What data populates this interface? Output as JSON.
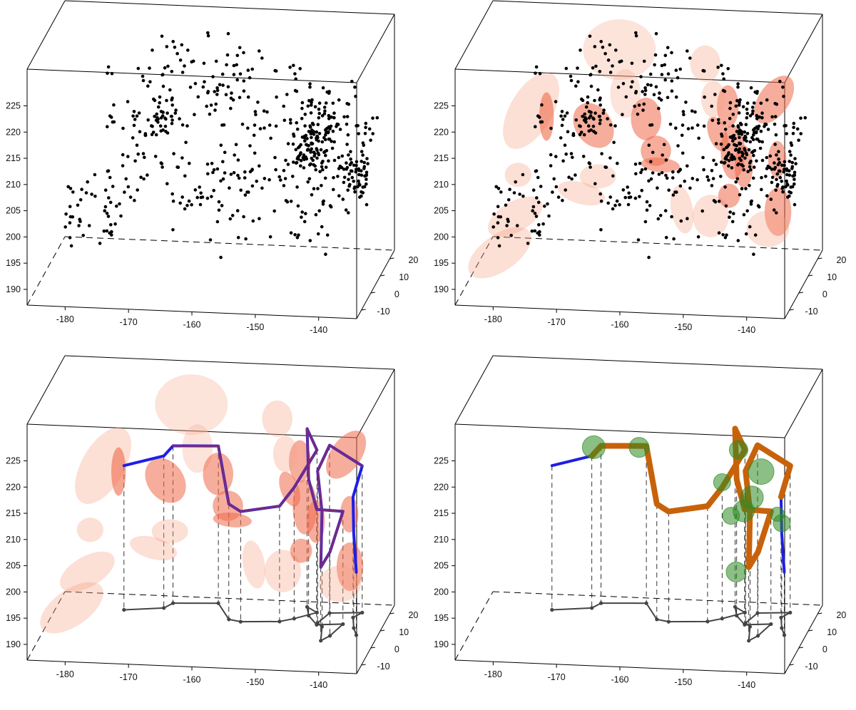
{
  "chart_data": [
    {
      "type": "scatter",
      "panel": "top-left",
      "title": "",
      "xlabel": "",
      "ylabel": "",
      "zlabel": "",
      "x_ticks": [
        "-180",
        "-170",
        "-160",
        "-150",
        "-140"
      ],
      "y_ticks": [
        "-10",
        "0",
        "10",
        "20"
      ],
      "z_ticks": [
        "190",
        "195",
        "200",
        "205",
        "210",
        "215",
        "220",
        "225"
      ],
      "xlim": [
        -186,
        -134
      ],
      "ylim": [
        -15,
        25
      ],
      "zlim": [
        187,
        232
      ],
      "clusters": [
        {
          "center": [
            -179,
            -5,
            203
          ],
          "spread": [
            1.6,
            3,
            4
          ],
          "count": 25,
          "seed": 11
        },
        {
          "center": [
            -175,
            3,
            200
          ],
          "spread": [
            1.2,
            3,
            4.5
          ],
          "count": 22,
          "seed": 12
        },
        {
          "center": [
            -172,
            8,
            213
          ],
          "spread": [
            3,
            4,
            6
          ],
          "count": 55,
          "seed": 13
        },
        {
          "center": [
            -167,
            6,
            218
          ],
          "spread": [
            1.5,
            3,
            2.5
          ],
          "count": 38,
          "seed": 14
        },
        {
          "center": [
            -160,
            -2,
            206
          ],
          "spread": [
            4,
            4,
            5
          ],
          "count": 40,
          "seed": 15
        },
        {
          "center": [
            -158,
            10,
            221
          ],
          "spread": [
            3,
            4,
            3
          ],
          "count": 45,
          "seed": 16
        },
        {
          "center": [
            -154,
            -4,
            209
          ],
          "spread": [
            2,
            3,
            5
          ],
          "count": 40,
          "seed": 17
        },
        {
          "center": [
            -147,
            12,
            217
          ],
          "spread": [
            3,
            4,
            5
          ],
          "count": 60,
          "seed": 18
        },
        {
          "center": [
            -144,
            5,
            213
          ],
          "spread": [
            1.6,
            2.5,
            2.5
          ],
          "count": 90,
          "seed": 19
        },
        {
          "center": [
            -140,
            12,
            215
          ],
          "spread": [
            2.5,
            3,
            4
          ],
          "count": 45,
          "seed": 20
        },
        {
          "center": [
            -143,
            -3,
            205
          ],
          "spread": [
            4,
            4,
            4
          ],
          "count": 55,
          "seed": 21
        },
        {
          "center": [
            -137,
            2,
            209
          ],
          "spread": [
            1.4,
            2,
            2
          ],
          "count": 60,
          "seed": 22
        },
        {
          "center": [
            -165,
            18,
            226
          ],
          "spread": [
            5,
            4,
            3
          ],
          "count": 30,
          "seed": 23
        }
      ]
    },
    {
      "type": "scatter",
      "panel": "top-right",
      "title": "",
      "x_ticks": [
        "-180",
        "-170",
        "-160",
        "-150",
        "-140"
      ],
      "y_ticks": [
        "-10",
        "0",
        "10",
        "20"
      ],
      "z_ticks": [
        "190",
        "195",
        "200",
        "205",
        "210",
        "215",
        "220",
        "225"
      ],
      "xlim": [
        -186,
        -134
      ],
      "ylim": [
        -15,
        25
      ],
      "zlim": [
        187,
        232
      ],
      "clusters_from": 0,
      "ellipses": [
        {
          "c": [
            -180,
            -8,
            195
          ],
          "r": [
            6,
            3
          ],
          "rot": -35,
          "op": 0.35,
          "col": "#f5a487"
        },
        {
          "c": [
            -178,
            -5,
            201
          ],
          "r": [
            5,
            2.5
          ],
          "rot": -30,
          "op": 0.35,
          "col": "#f5a487"
        },
        {
          "c": [
            -178,
            -2,
            208
          ],
          "r": [
            2.2,
            2
          ],
          "rot": 0,
          "op": 0.35,
          "col": "#f5a487"
        },
        {
          "c": [
            -177,
            5,
            218
          ],
          "r": [
            3.5,
            7
          ],
          "rot": 30,
          "op": 0.35,
          "col": "#f5a487"
        },
        {
          "c": [
            -175,
            8,
            216
          ],
          "r": [
            1.2,
            4
          ],
          "rot": 0,
          "op": 0.6,
          "col": "#ee6a4b"
        },
        {
          "c": [
            -167,
            4,
            216
          ],
          "r": [
            3,
            4
          ],
          "rot": -35,
          "op": 0.55,
          "col": "#ee6a4b"
        },
        {
          "c": [
            -168,
            -2,
            205
          ],
          "r": [
            4,
            1.8
          ],
          "rot": 15,
          "op": 0.35,
          "col": "#f5a487"
        },
        {
          "c": [
            -166,
            2,
            207
          ],
          "r": [
            3,
            2
          ],
          "rot": 0,
          "op": 0.35,
          "col": "#f5a487"
        },
        {
          "c": [
            -165,
            18,
            226
          ],
          "r": [
            6,
            5
          ],
          "rot": 0,
          "op": 0.3,
          "col": "#f5a487"
        },
        {
          "c": [
            -163,
            11,
            220
          ],
          "r": [
            2.5,
            4
          ],
          "rot": 0,
          "op": 0.3,
          "col": "#f5a487"
        },
        {
          "c": [
            -159,
            6,
            217
          ],
          "r": [
            2.5,
            3.5
          ],
          "rot": 0,
          "op": 0.55,
          "col": "#ee6a4b"
        },
        {
          "c": [
            -157,
            3,
            212
          ],
          "r": [
            2.5,
            2.5
          ],
          "rot": 0,
          "op": 0.55,
          "col": "#ee6a4b"
        },
        {
          "c": [
            -156,
            1,
            210
          ],
          "r": [
            3.2,
            1.2
          ],
          "rot": 5,
          "op": 0.55,
          "col": "#ee6a4b"
        },
        {
          "c": [
            -152,
            -3,
            203
          ],
          "r": [
            1.8,
            4
          ],
          "rot": -10,
          "op": 0.35,
          "col": "#f5a487"
        },
        {
          "c": [
            -151,
            15,
            225
          ],
          "r": [
            2.5,
            3
          ],
          "rot": 0,
          "op": 0.35,
          "col": "#f5a487"
        },
        {
          "c": [
            -147,
            12,
            218
          ],
          "r": [
            1.8,
            3.5
          ],
          "rot": 0,
          "op": 0.55,
          "col": "#ee6a4b"
        },
        {
          "c": [
            -148,
            8,
            214
          ],
          "r": [
            1.5,
            3
          ],
          "rot": -20,
          "op": 0.55,
          "col": "#ee6a4b"
        },
        {
          "c": [
            -145,
            4,
            212
          ],
          "r": [
            2,
            4.5
          ],
          "rot": 0,
          "op": 0.55,
          "col": "#ee6a4b"
        },
        {
          "c": [
            -143,
            2,
            210
          ],
          "r": [
            1.5,
            3.5
          ],
          "rot": 0,
          "op": 0.55,
          "col": "#ee6a4b"
        },
        {
          "c": [
            -140,
            14,
            219
          ],
          "r": [
            2.5,
            4.5
          ],
          "rot": 35,
          "op": 0.55,
          "col": "#ee6a4b"
        },
        {
          "c": [
            -138,
            4,
            211
          ],
          "r": [
            1.5,
            3
          ],
          "rot": 0,
          "op": 0.55,
          "col": "#ee6a4b"
        },
        {
          "c": [
            -147,
            -6,
            203
          ],
          "r": [
            3,
            3.5
          ],
          "rot": 0,
          "op": 0.35,
          "col": "#f5a487"
        },
        {
          "c": [
            -145,
            0,
            205
          ],
          "r": [
            1.8,
            2
          ],
          "rot": 0,
          "op": 0.55,
          "col": "#ee6a4b"
        },
        {
          "c": [
            -137,
            -2,
            203
          ],
          "r": [
            2.2,
            4
          ],
          "rot": 0,
          "op": 0.55,
          "col": "#ee6a4b"
        },
        {
          "c": [
            -138,
            -6,
            201
          ],
          "r": [
            3.5,
            3
          ],
          "rot": 0,
          "op": 0.35,
          "col": "#f5a487"
        },
        {
          "c": [
            -149,
            10,
            220
          ],
          "r": [
            2,
            3
          ],
          "rot": 0,
          "op": 0.35,
          "col": "#f5a487"
        }
      ]
    },
    {
      "type": "line",
      "panel": "bottom-left",
      "title": "",
      "x_ticks": [
        "-180",
        "-170",
        "-160",
        "-150",
        "-140"
      ],
      "y_ticks": [
        "-10",
        "0",
        "10",
        "20"
      ],
      "z_ticks": [
        "190",
        "195",
        "200",
        "205",
        "210",
        "215",
        "220",
        "225"
      ],
      "xlim": [
        -186,
        -134
      ],
      "ylim": [
        -15,
        25
      ],
      "zlim": [
        187,
        232
      ],
      "ellipses_from": 1,
      "path": [
        [
          -174,
          7,
          217.5
        ],
        [
          -168,
          9,
          219
        ],
        [
          -167,
          12,
          220
        ],
        [
          -160,
          13,
          220
        ],
        [
          -157,
          4,
          212
        ],
        [
          -155,
          3,
          211
        ],
        [
          -149,
          4,
          212
        ],
        [
          -147,
          6,
          215
        ],
        [
          -144,
          10,
          221
        ],
        [
          -146,
          13,
          224
        ],
        [
          -145,
          8,
          216
        ],
        [
          -143,
          3,
          212
        ],
        [
          -139,
          4,
          211.5
        ],
        [
          -140,
          -3,
          206
        ],
        [
          -141,
          -6,
          204
        ],
        [
          -142,
          2,
          212
        ],
        [
          -143,
          4,
          219
        ],
        [
          -142,
          10,
          222
        ],
        [
          -137,
          11,
          218
        ],
        [
          -138,
          8,
          213
        ],
        [
          -137,
          2,
          208
        ],
        [
          -136,
          -2,
          202
        ]
      ],
      "path_color": "#1e1ee6",
      "path_overlay_color": "#7a2a7a"
    },
    {
      "type": "line",
      "panel": "bottom-right",
      "title": "",
      "x_ticks": [
        "-180",
        "-170",
        "-160",
        "-150",
        "-140"
      ],
      "y_ticks": [
        "-10",
        "0",
        "10",
        "20"
      ],
      "z_ticks": [
        "190",
        "195",
        "200",
        "205",
        "210",
        "215",
        "220",
        "225"
      ],
      "xlim": [
        -186,
        -134
      ],
      "ylim": [
        -15,
        25
      ],
      "zlim": [
        187,
        232
      ],
      "path_from": 2,
      "spheres": [
        [
          -168,
          11,
          220
        ],
        [
          -161,
          12,
          220
        ],
        [
          -147,
          6,
          216
        ],
        [
          -145,
          10,
          221
        ],
        [
          -141,
          7,
          218
        ],
        [
          -142,
          4,
          214
        ],
        [
          -143,
          2,
          212
        ],
        [
          -145,
          2,
          211
        ],
        [
          -138,
          4,
          211
        ],
        [
          -137,
          2,
          210
        ],
        [
          -143,
          -6,
          203
        ]
      ],
      "path_color": "#1e1ee6",
      "tube_color": "#c8620a",
      "sphere_color": "#2e8b22"
    }
  ]
}
